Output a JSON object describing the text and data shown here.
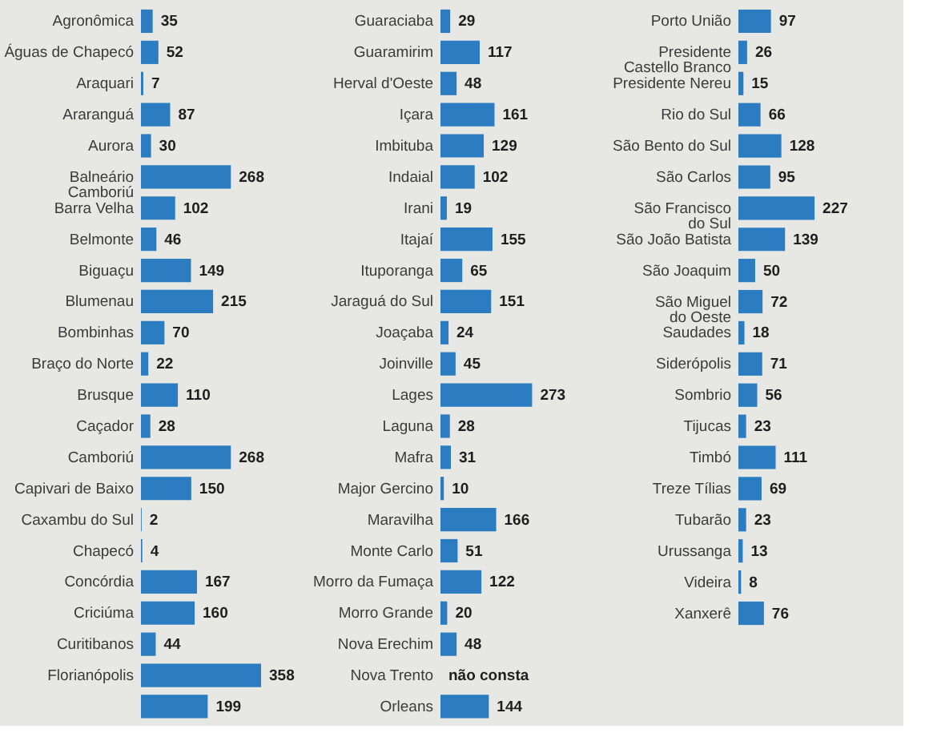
{
  "chart_data": [
    {
      "type": "bar",
      "orientation": "horizontal",
      "color": "#2b7cc0",
      "data_labels": true,
      "categories": [
        "Agronômica",
        "Águas de Chapecó",
        "Araquari",
        "Araranguá",
        "Aurora",
        "Balneário Camboriú",
        "Barra Velha",
        "Belmonte",
        "Biguaçu",
        "Blumenau",
        "Bombinhas",
        "Braço do Norte",
        "Brusque",
        "Caçador",
        "Camboriú",
        "Capivari de Baixo",
        "Caxambu do Sul",
        "Chapecó",
        "Concórdia",
        "Criciúma",
        "Curitibanos",
        "Florianópolis",
        null
      ],
      "values": [
        35,
        52,
        7,
        87,
        30,
        268,
        102,
        46,
        149,
        215,
        70,
        22,
        110,
        28,
        268,
        150,
        2,
        4,
        167,
        160,
        44,
        358,
        199
      ]
    },
    {
      "type": "bar",
      "orientation": "horizontal",
      "color": "#2b7cc0",
      "categories": [
        "Guaraciaba",
        "Guaramirim",
        "Herval d'Oeste",
        "Içara",
        "Imbituba",
        "Indaial",
        "Irani",
        "Itajaí",
        "Ituporanga",
        "Jaraguá do Sul",
        "Joaçaba",
        "Joinville",
        "Lages",
        "Laguna",
        "Mafra",
        "Major Gercino",
        "Maravilha",
        "Monte Carlo",
        "Morro da Fumaça",
        "Morro Grande",
        "Nova Erechim",
        "Nova Trento",
        "Orleans"
      ],
      "values": [
        29,
        117,
        48,
        161,
        129,
        102,
        19,
        155,
        65,
        151,
        24,
        45,
        273,
        28,
        31,
        10,
        166,
        51,
        122,
        20,
        48,
        null,
        144
      ],
      "value_labels": [
        "29",
        "117",
        "48",
        "161",
        "129",
        "102",
        "19",
        "155",
        "65",
        "151",
        "24",
        "45",
        "273",
        "28",
        "31",
        "10",
        "166",
        "51",
        "122",
        "20",
        "48",
        "não consta",
        "144"
      ]
    },
    {
      "type": "bar",
      "orientation": "horizontal",
      "color": "#2b7cc0",
      "data_labels": true,
      "categories": [
        "Porto União",
        "Presidente Castello Branco",
        "Presidente Nereu",
        "Rio do Sul",
        "São Bento do Sul",
        "São Carlos",
        "São Francisco do Sul",
        "São João Batista",
        "São Joaquim",
        "São Miguel do Oeste",
        "Saudades",
        "Siderópolis",
        "Sombrio",
        "Tijucas",
        "Timbó",
        "Treze Tílias",
        "Tubarão",
        "Urussanga",
        "Videira",
        "Xanxerê"
      ],
      "values": [
        97,
        26,
        15,
        66,
        128,
        95,
        227,
        139,
        50,
        72,
        18,
        71,
        56,
        23,
        111,
        69,
        23,
        13,
        8,
        76
      ]
    }
  ]
}
